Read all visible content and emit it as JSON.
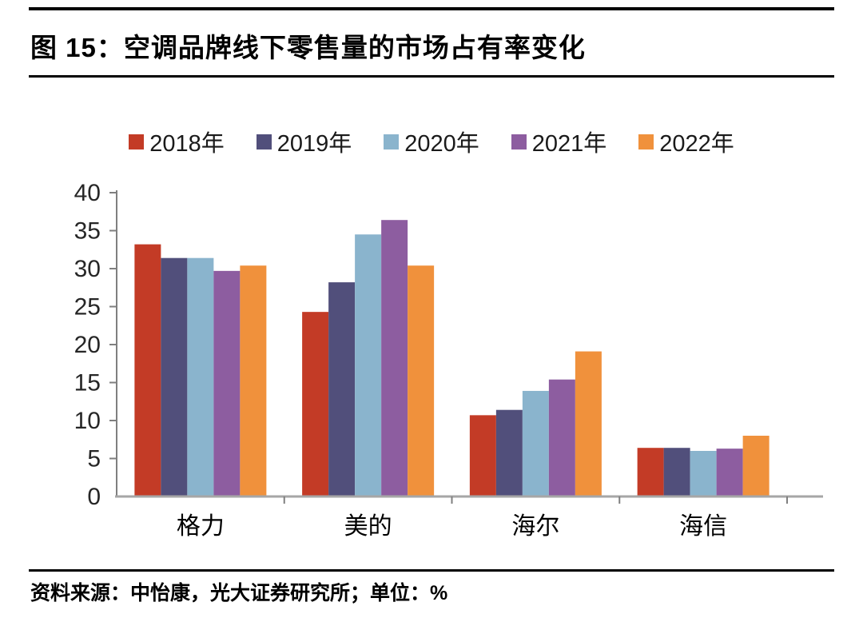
{
  "header": {
    "title": "图 15：空调品牌线下零售量的市场占有率变化"
  },
  "footer": {
    "source": "资料来源：中怡康，光大证券研究所；单位：%"
  },
  "chart_data": {
    "type": "bar",
    "title": "空调品牌线下零售量的市场占有率变化",
    "categories": [
      "格力",
      "美的",
      "海尔",
      "海信"
    ],
    "series": [
      {
        "name": "2018年",
        "color": "#C33B26",
        "values": [
          33.2,
          24.3,
          10.7,
          6.4
        ]
      },
      {
        "name": "2019年",
        "color": "#514F7B",
        "values": [
          31.4,
          28.2,
          11.4,
          6.4
        ]
      },
      {
        "name": "2020年",
        "color": "#8AB4CD",
        "values": [
          31.4,
          34.5,
          13.9,
          6.0
        ]
      },
      {
        "name": "2021年",
        "color": "#8D5DA0",
        "values": [
          29.7,
          36.4,
          15.4,
          6.3
        ]
      },
      {
        "name": "2022年",
        "color": "#F0913C",
        "values": [
          30.4,
          30.4,
          19.1,
          8.0
        ]
      }
    ],
    "ylim": [
      0,
      40
    ],
    "ytick_step": 5,
    "yticks": [
      "0",
      "5",
      "10",
      "15",
      "20",
      "25",
      "30",
      "35",
      "40"
    ],
    "unit": "%",
    "legend_position": "top",
    "grid": false,
    "axis_color": "#7F7F7F",
    "baseline_color": "#A6A6A6",
    "tick_label_color": "#262626"
  }
}
